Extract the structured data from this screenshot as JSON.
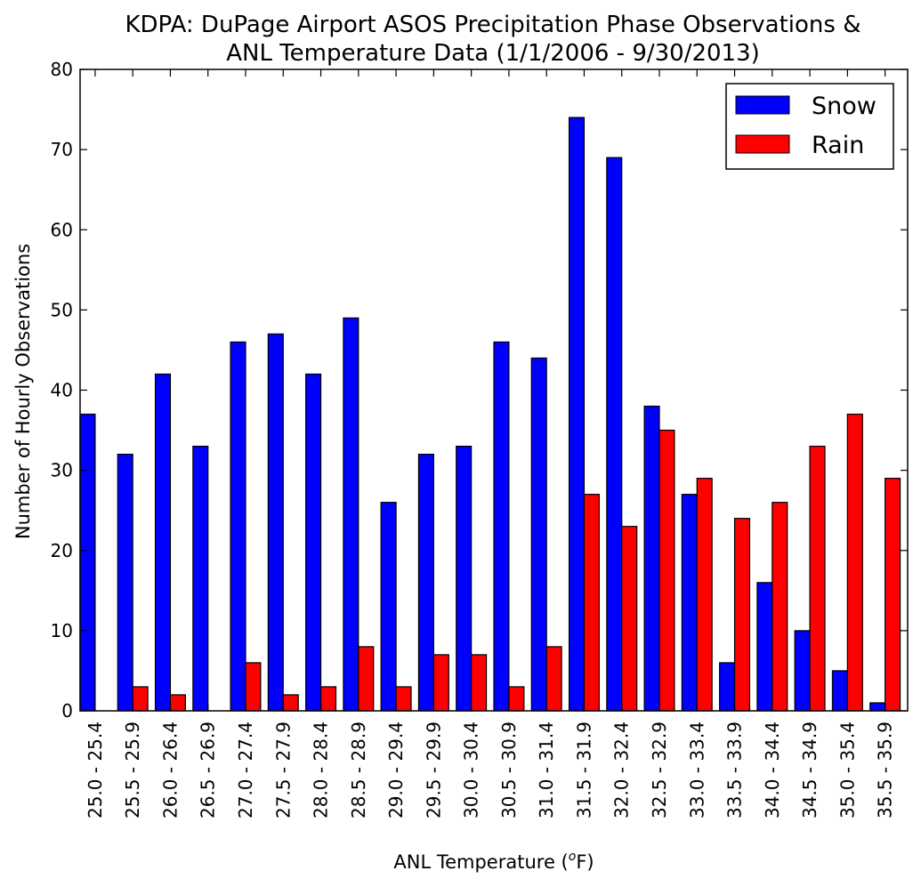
{
  "chart_data": {
    "type": "bar",
    "title_line1": "KDPA: DuPage Airport ASOS Precipitation Phase Observations &",
    "title_line2": "ANL Temperature Data (1/1/2006 - 9/30/2013)",
    "xlabel": "ANL Temperature (",
    "xlabel_super": "o",
    "xlabel_end": "F)",
    "ylabel": "Number of Hourly Observations",
    "ylim": [
      0,
      80
    ],
    "yticks": [
      0,
      10,
      20,
      30,
      40,
      50,
      60,
      70,
      80
    ],
    "legend_position": "top-right",
    "categories": [
      "25.0 - 25.4",
      "25.5 - 25.9",
      "26.0 - 26.4",
      "26.5 - 26.9",
      "27.0 - 27.4",
      "27.5 - 27.9",
      "28.0 - 28.4",
      "28.5 - 28.9",
      "29.0 - 29.4",
      "29.5 - 29.9",
      "30.0 - 30.4",
      "30.5 - 30.9",
      "31.0 - 31.4",
      "31.5 - 31.9",
      "32.0 - 32.4",
      "32.5 - 32.9",
      "33.0 - 33.4",
      "33.5 - 33.9",
      "34.0 - 34.4",
      "34.5 - 34.9",
      "35.0 - 35.4",
      "35.5 - 35.9"
    ],
    "series": [
      {
        "name": "Snow",
        "color": "#0000ff",
        "values": [
          37,
          32,
          42,
          33,
          46,
          47,
          42,
          49,
          26,
          32,
          33,
          46,
          44,
          74,
          69,
          38,
          27,
          6,
          16,
          10,
          5,
          1
        ]
      },
      {
        "name": "Rain",
        "color": "#ff0000",
        "values": [
          0,
          3,
          2,
          0,
          6,
          2,
          3,
          8,
          3,
          7,
          7,
          3,
          8,
          27,
          23,
          35,
          29,
          24,
          26,
          33,
          37,
          29
        ]
      }
    ]
  }
}
